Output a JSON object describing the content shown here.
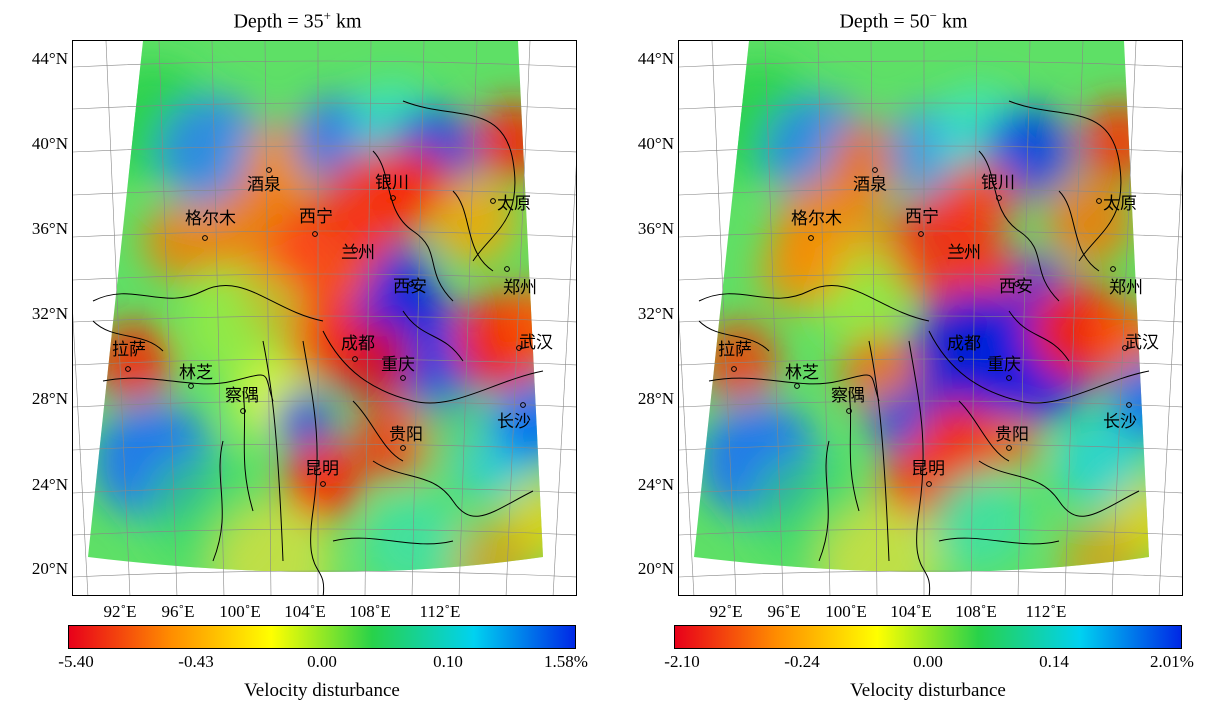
{
  "panels": [
    {
      "id": "left",
      "title": {
        "prefix": "Depth = 35",
        "sup": "+",
        "suffix": "km"
      },
      "lat_labels": [
        "44°N",
        "40°N",
        "36°N",
        "32°N",
        "28°N",
        "24°N",
        "20°N"
      ],
      "lon_labels": [
        "92˚E",
        "96˚E",
        "100˚E",
        "104˚E",
        "108˚E",
        "112˚E"
      ],
      "cities": [
        "酒泉",
        "银川",
        "太原",
        "格尔木",
        "西宁",
        "兰州",
        "西安",
        "郑州",
        "武汉",
        "拉萨",
        "林芝",
        "成都",
        "重庆",
        "察隅",
        "长沙",
        "贵阳",
        "昆明"
      ],
      "colorbar": {
        "stops": [
          "#e8001a",
          "#ff8c00",
          "#ffff00",
          "#28d24a",
          "#00d2f0",
          "#0028e6"
        ],
        "ticks": [
          "-5.40",
          "-0.43",
          "0.00",
          "0.10",
          "1.58%"
        ],
        "title": "Velocity disturbance"
      }
    },
    {
      "id": "right",
      "title": {
        "prefix": "Depth = 50",
        "sup": "−",
        "suffix": "km"
      },
      "lat_labels": [
        "44°N",
        "40°N",
        "36°N",
        "32°N",
        "28°N",
        "24°N",
        "20°N"
      ],
      "lon_labels": [
        "92˚E",
        "96˚E",
        "100˚E",
        "104˚E",
        "108˚E",
        "112˚E"
      ],
      "cities": [
        "酒泉",
        "银川",
        "太原",
        "格尔木",
        "西宁",
        "兰州",
        "西安",
        "郑州",
        "武汉",
        "拉萨",
        "林芝",
        "成都",
        "重庆",
        "察隅",
        "长沙",
        "贵阳",
        "昆明"
      ],
      "colorbar": {
        "stops": [
          "#e8001a",
          "#ff8c00",
          "#ffff00",
          "#28d24a",
          "#00d2f0",
          "#0028e6"
        ],
        "ticks": [
          "-2.10",
          "-0.24",
          "0.00",
          "0.14",
          "2.01%"
        ],
        "title": "Velocity disturbance"
      }
    }
  ]
}
